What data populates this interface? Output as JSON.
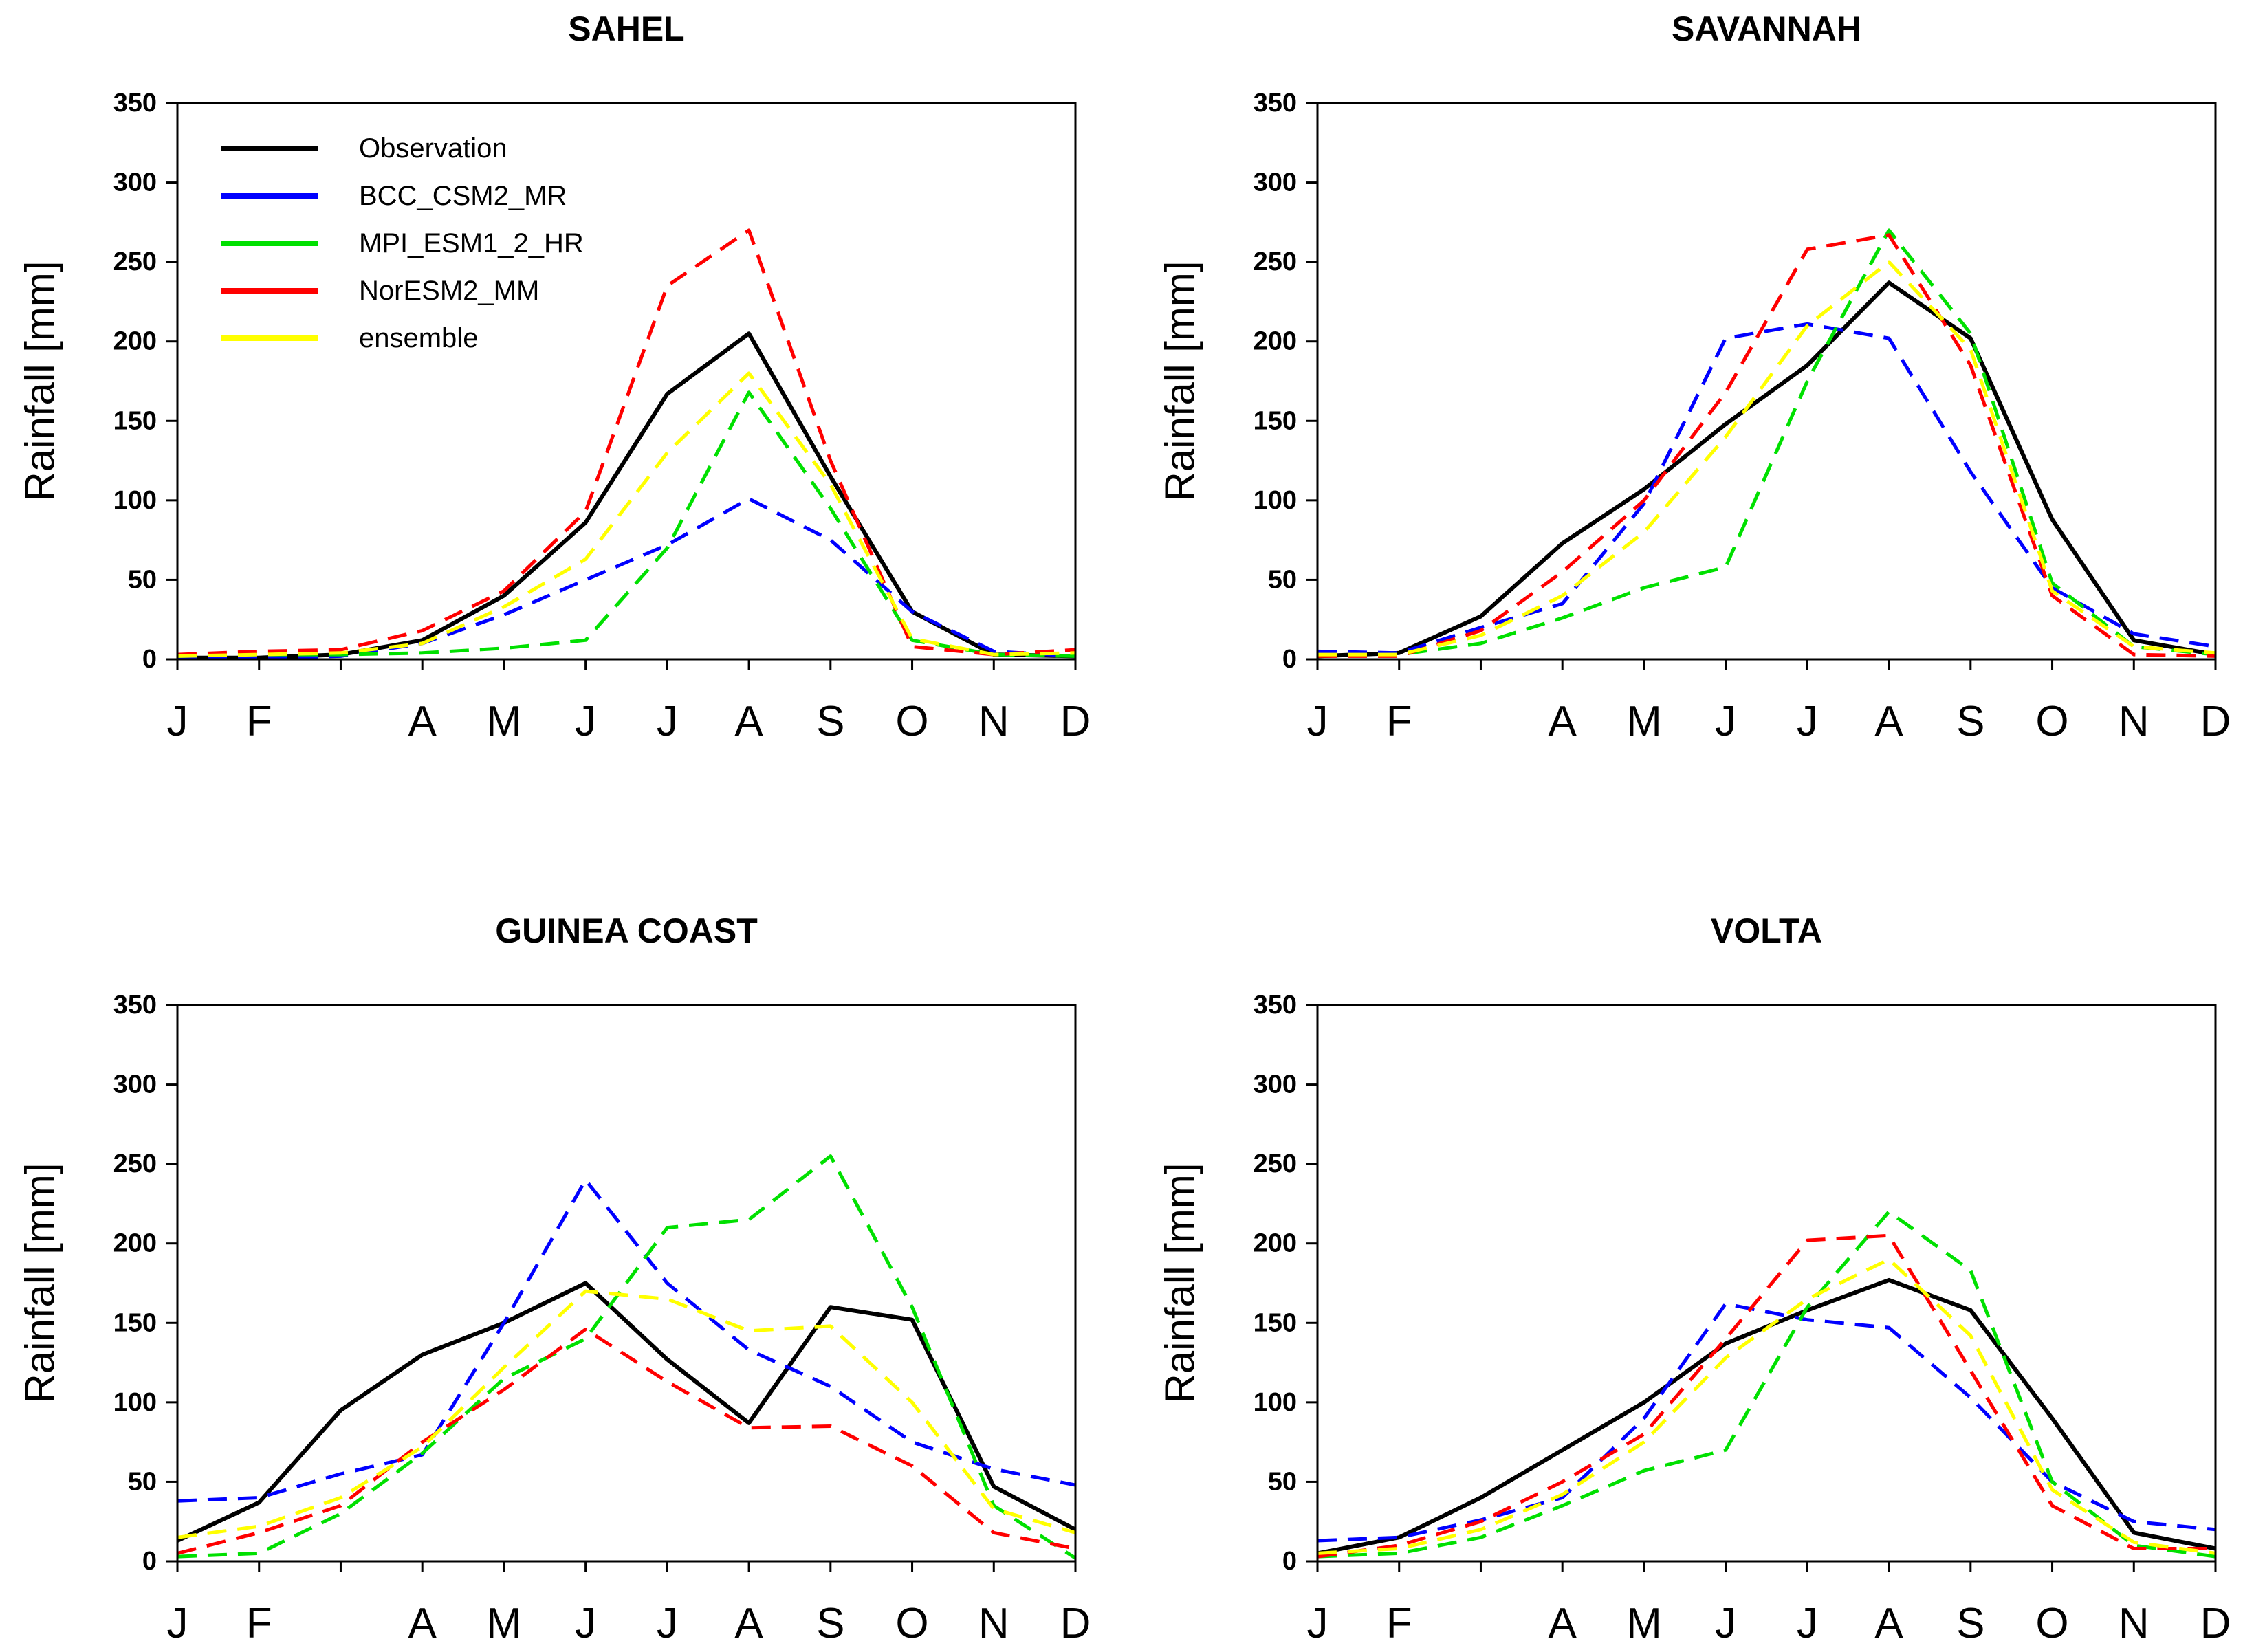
{
  "chart_data": [
    {
      "type": "line",
      "title": "SAHEL",
      "xlabel": "",
      "ylabel": "Rainfall [mm]",
      "categories": [
        "J",
        "F",
        "",
        "A",
        "M",
        "J",
        "J",
        "A",
        "S",
        "O",
        "N",
        "D"
      ],
      "ylim": [
        0,
        350
      ],
      "yticks": [
        0,
        50,
        100,
        150,
        200,
        250,
        300,
        350
      ],
      "legend": "top-left",
      "series": [
        {
          "name": "Observation",
          "color": "#000000",
          "style": "solid",
          "values": [
            1,
            1,
            3,
            12,
            40,
            86,
            167,
            205,
            115,
            30,
            3,
            2
          ]
        },
        {
          "name": "BCC_CSM2_MR",
          "color": "#0000ff",
          "style": "dashed",
          "values": [
            1,
            1,
            2,
            10,
            28,
            50,
            72,
            101,
            75,
            30,
            5,
            2
          ]
        },
        {
          "name": "MPI_ESM1_2_HR",
          "color": "#00e000",
          "style": "dashed",
          "values": [
            2,
            3,
            3,
            4,
            7,
            12,
            70,
            168,
            95,
            12,
            3,
            2
          ]
        },
        {
          "name": "NorESM2_MM",
          "color": "#ff0000",
          "style": "dashed",
          "values": [
            3,
            5,
            6,
            18,
            43,
            93,
            235,
            270,
            125,
            8,
            3,
            6
          ]
        },
        {
          "name": "ensemble",
          "color": "#ffff00",
          "style": "dashed",
          "values": [
            2,
            3,
            4,
            10,
            33,
            63,
            130,
            180,
            110,
            13,
            3,
            4
          ]
        }
      ]
    },
    {
      "type": "line",
      "title": "SAVANNAH",
      "xlabel": "",
      "ylabel": "Rainfall [mm]",
      "categories": [
        "J",
        "F",
        "",
        "A",
        "M",
        "J",
        "J",
        "A",
        "S",
        "O",
        "N",
        "D"
      ],
      "ylim": [
        0,
        350
      ],
      "yticks": [
        0,
        50,
        100,
        150,
        200,
        250,
        300,
        350
      ],
      "legend": "none",
      "series": [
        {
          "name": "Observation",
          "color": "#000000",
          "style": "solid",
          "values": [
            2,
            4,
            27,
            73,
            107,
            148,
            185,
            237,
            202,
            88,
            12,
            3
          ]
        },
        {
          "name": "BCC_CSM2_MR",
          "color": "#0000ff",
          "style": "dashed",
          "values": [
            5,
            4,
            20,
            35,
            98,
            202,
            211,
            202,
            118,
            45,
            16,
            8
          ]
        },
        {
          "name": "MPI_ESM1_2_HR",
          "color": "#00e000",
          "style": "dashed",
          "values": [
            2,
            3,
            10,
            26,
            45,
            58,
            175,
            270,
            205,
            48,
            8,
            3
          ]
        },
        {
          "name": "NorESM2_MM",
          "color": "#ff0000",
          "style": "dashed",
          "values": [
            2,
            2,
            18,
            55,
            100,
            168,
            258,
            267,
            185,
            40,
            3,
            2
          ]
        },
        {
          "name": "ensemble",
          "color": "#ffff00",
          "style": "dashed",
          "values": [
            3,
            3,
            15,
            40,
            80,
            140,
            210,
            250,
            195,
            43,
            8,
            4
          ]
        }
      ]
    },
    {
      "type": "line",
      "title": "GUINEA COAST",
      "xlabel": "",
      "ylabel": "Rainfall [mm]",
      "categories": [
        "J",
        "F",
        "",
        "A",
        "M",
        "J",
        "J",
        "A",
        "S",
        "O",
        "N",
        "D"
      ],
      "ylim": [
        0,
        350
      ],
      "yticks": [
        0,
        50,
        100,
        150,
        200,
        250,
        300,
        350
      ],
      "legend": "none",
      "series": [
        {
          "name": "Observation",
          "color": "#000000",
          "style": "solid",
          "values": [
            13,
            37,
            95,
            130,
            150,
            175,
            127,
            87,
            160,
            152,
            47,
            20
          ]
        },
        {
          "name": "BCC_CSM2_MR",
          "color": "#0000ff",
          "style": "dashed",
          "values": [
            38,
            40,
            55,
            67,
            150,
            240,
            175,
            133,
            110,
            75,
            58,
            48
          ]
        },
        {
          "name": "MPI_ESM1_2_HR",
          "color": "#00e000",
          "style": "dashed",
          "values": [
            3,
            5,
            30,
            68,
            115,
            140,
            210,
            215,
            255,
            160,
            35,
            2
          ]
        },
        {
          "name": "NorESM2_MM",
          "color": "#ff0000",
          "style": "dashed",
          "values": [
            5,
            18,
            35,
            75,
            108,
            146,
            113,
            84,
            85,
            60,
            18,
            8
          ]
        },
        {
          "name": "ensemble",
          "color": "#ffff00",
          "style": "dashed",
          "values": [
            15,
            22,
            40,
            72,
            122,
            170,
            165,
            145,
            148,
            100,
            33,
            18
          ]
        }
      ]
    },
    {
      "type": "line",
      "title": "VOLTA",
      "xlabel": "",
      "ylabel": "Rainfall [mm]",
      "categories": [
        "J",
        "F",
        "",
        "A",
        "M",
        "J",
        "J",
        "A",
        "S",
        "O",
        "N",
        "D"
      ],
      "ylim": [
        0,
        350
      ],
      "yticks": [
        0,
        50,
        100,
        150,
        200,
        250,
        300,
        350
      ],
      "legend": "none",
      "series": [
        {
          "name": "Observation",
          "color": "#000000",
          "style": "solid",
          "values": [
            5,
            15,
            40,
            70,
            100,
            137,
            158,
            177,
            158,
            90,
            18,
            8
          ]
        },
        {
          "name": "BCC_CSM2_MR",
          "color": "#0000ff",
          "style": "dashed",
          "values": [
            13,
            15,
            26,
            40,
            90,
            162,
            152,
            147,
            103,
            50,
            25,
            20
          ]
        },
        {
          "name": "MPI_ESM1_2_HR",
          "color": "#00e000",
          "style": "dashed",
          "values": [
            3,
            5,
            15,
            35,
            57,
            70,
            160,
            220,
            183,
            50,
            10,
            3
          ]
        },
        {
          "name": "NorESM2_MM",
          "color": "#ff0000",
          "style": "dashed",
          "values": [
            3,
            10,
            25,
            50,
            80,
            140,
            202,
            205,
            120,
            35,
            8,
            8
          ]
        },
        {
          "name": "ensemble",
          "color": "#ffff00",
          "style": "dashed",
          "values": [
            5,
            8,
            20,
            42,
            75,
            128,
            165,
            190,
            142,
            45,
            12,
            5
          ]
        }
      ]
    }
  ]
}
